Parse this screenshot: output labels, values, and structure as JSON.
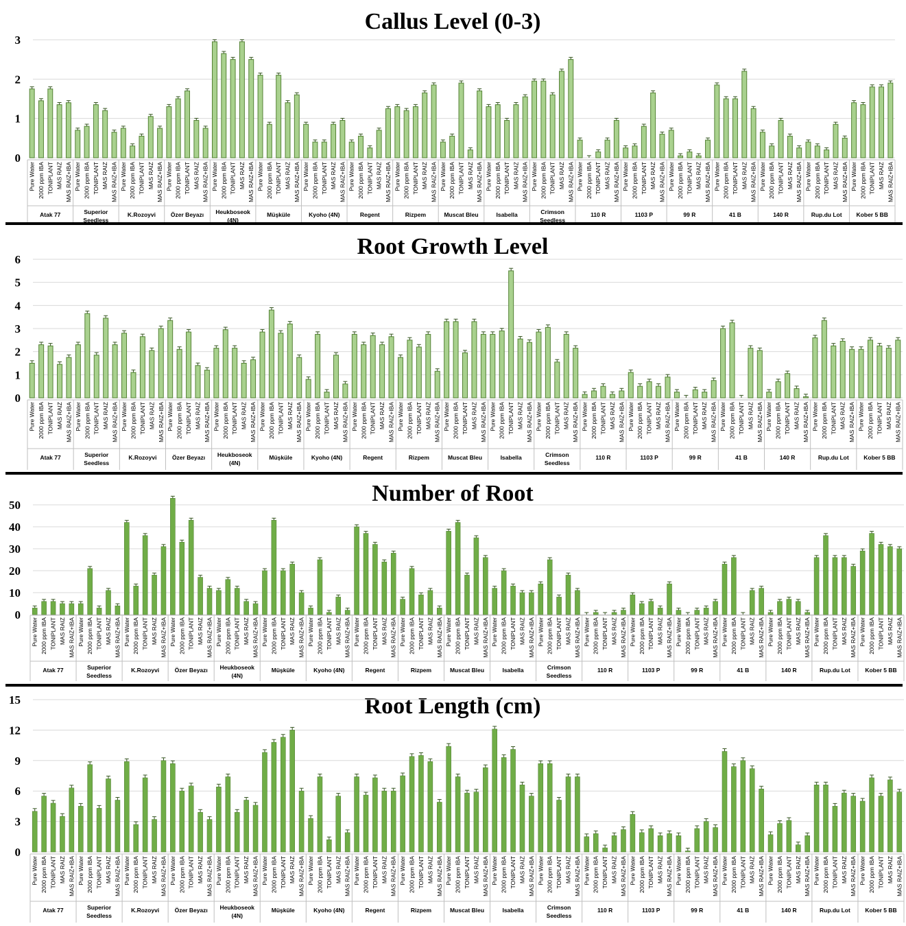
{
  "figure": {
    "background": "#ffffff"
  },
  "treatments": [
    "Pure Water",
    "2000 ppm IBA",
    "TONIPLANT",
    "MAS RAIZ",
    "MAS RAIZ+IBA"
  ],
  "groups": [
    "Atak 77",
    "Superior Seedless",
    "K.Rozoyvi",
    "Özer Beyazı",
    "Heukboseok (4N)",
    "Müşküle",
    "Kyoho (4N)",
    "Regent",
    "Rizpem",
    "Muscat Bleu",
    "Isabella",
    "Crimson Seedless",
    "110 R",
    "1103 P",
    "99 R",
    "41 B",
    "140 R",
    "Rup.du Lot",
    "Kober 5 BB"
  ],
  "colors": {
    "bar_light": "#a9d18e",
    "bar_dark": "#70ad47",
    "bar_edge": "#548235",
    "error": "#385723"
  },
  "chart_data": [
    {
      "type": "bar",
      "title": "Callus Level (0-3)",
      "ylim": [
        0,
        3
      ],
      "yticks": [
        0,
        1,
        2,
        3
      ],
      "group_labels": [
        [
          "Atak 77"
        ],
        [
          "Superior",
          "Seedless"
        ],
        [
          "K.Rozoyvi"
        ],
        [
          "Özer Beyazı"
        ],
        [
          "Heukboseok",
          "(4N)"
        ],
        [
          "Müşküle"
        ],
        [
          "Kyoho (4N)"
        ],
        [
          "Regent"
        ],
        [
          "Rizpem"
        ],
        [
          "Muscat Bleu"
        ],
        [
          "Isabella"
        ],
        [
          "Crimson",
          "Seedless"
        ],
        [
          "110 R"
        ],
        [
          "1103 P"
        ],
        [
          "99 R"
        ],
        [
          "41 B"
        ],
        [
          "140 R"
        ],
        [
          "Rup.du Lot"
        ],
        [
          "Kober 5 BB"
        ]
      ],
      "values": [
        [
          1.75,
          1.45,
          1.75,
          1.35,
          1.4
        ],
        [
          0.7,
          0.8,
          1.35,
          1.2,
          0.65
        ],
        [
          0.75,
          0.3,
          0.55,
          1.05,
          0.75
        ],
        [
          1.3,
          1.5,
          1.7,
          0.95,
          0.75
        ],
        [
          2.95,
          2.65,
          2.5,
          2.95,
          2.5
        ],
        [
          2.1,
          0.85,
          2.1,
          1.4,
          1.6
        ],
        [
          0.85,
          0.4,
          0.4,
          0.85,
          0.95
        ],
        [
          0.4,
          0.55,
          0.25,
          0.7,
          1.25
        ],
        [
          1.3,
          1.2,
          1.3,
          1.65,
          1.85
        ],
        [
          0.4,
          0.55,
          1.9,
          0.2,
          1.7
        ],
        [
          1.3,
          1.35,
          0.95,
          1.35,
          1.55
        ],
        [
          1.95,
          1.95,
          1.6,
          2.2,
          2.5
        ],
        [
          0.45,
          0.0,
          0.15,
          0.45,
          0.95
        ],
        [
          0.25,
          0.3,
          0.8,
          1.65,
          0.6
        ],
        [
          0.7,
          0.05,
          0.15,
          0.05,
          0.45
        ],
        [
          1.85,
          1.5,
          1.5,
          2.2,
          1.25
        ],
        [
          0.65,
          0.3,
          0.95,
          0.55,
          0.25
        ],
        [
          0.4,
          0.3,
          0.2,
          0.85,
          0.5
        ],
        [
          1.4,
          1.35,
          1.8,
          1.8,
          1.9
        ]
      ]
    },
    {
      "type": "bar",
      "title": "Root Growth Level",
      "ylim": [
        0,
        6
      ],
      "yticks": [
        0,
        1,
        2,
        3,
        4,
        5,
        6
      ],
      "group_labels": [
        [
          "Atak 77"
        ],
        [
          "Superior",
          "Seedless"
        ],
        [
          "K.Rozoyvi"
        ],
        [
          "Özer Beyazı"
        ],
        [
          "Heukboseok",
          "(4N)"
        ],
        [
          "Müşküle"
        ],
        [
          "Kyoho (4N)"
        ],
        [
          "Regent"
        ],
        [
          "Rizpem"
        ],
        [
          "Muscat Bleu"
        ],
        [
          "Isabella"
        ],
        [
          "Crimson",
          "Seedless"
        ],
        [
          "110 R"
        ],
        [
          "1103 P"
        ],
        [
          "99 R"
        ],
        [
          "41 B"
        ],
        [
          "140 R"
        ],
        [
          "Rup.du Lot"
        ],
        [
          "Kober 5 BB"
        ]
      ],
      "values": [
        [
          1.5,
          2.3,
          2.25,
          1.45,
          1.75
        ],
        [
          2.3,
          3.65,
          1.85,
          3.45,
          2.3
        ],
        [
          2.8,
          1.1,
          2.65,
          2.05,
          3.0
        ],
        [
          3.35,
          2.1,
          2.85,
          1.4,
          1.2
        ],
        [
          2.15,
          2.95,
          2.15,
          1.5,
          1.65
        ],
        [
          2.85,
          3.8,
          2.8,
          3.2,
          1.75
        ],
        [
          0.8,
          2.75,
          0.25,
          1.85,
          0.6
        ],
        [
          2.75,
          2.3,
          2.7,
          2.3,
          2.65
        ],
        [
          1.75,
          2.5,
          2.2,
          2.75,
          1.15
        ],
        [
          3.3,
          3.3,
          1.95,
          3.3,
          2.75
        ],
        [
          2.75,
          2.9,
          5.5,
          2.55,
          2.4
        ],
        [
          2.85,
          3.05,
          1.55,
          2.75,
          2.15
        ],
        [
          0.15,
          0.3,
          0.5,
          0.15,
          0.3
        ],
        [
          1.1,
          0.5,
          0.7,
          0.5,
          0.9
        ],
        [
          0.25,
          0.0,
          0.35,
          0.25,
          0.75
        ],
        [
          3.0,
          3.25,
          0.0,
          2.15,
          2.05
        ],
        [
          0.25,
          0.7,
          1.05,
          0.4,
          0.05
        ],
        [
          2.6,
          3.35,
          2.25,
          2.45,
          2.1
        ],
        [
          2.1,
          2.5,
          2.25,
          2.15,
          2.5
        ]
      ]
    },
    {
      "type": "bar",
      "title": "Number of Root",
      "ylim": [
        0,
        50
      ],
      "yticks": [
        0,
        10,
        20,
        30,
        40,
        50
      ],
      "group_labels": [
        [
          "Atak 77"
        ],
        [
          "Superior",
          "Seedless"
        ],
        [
          "K.Rozoyvi"
        ],
        [
          "Özer Beyazı"
        ],
        [
          "Heukboseok",
          "(4N)"
        ],
        [
          "Müşküle"
        ],
        [
          "Kyoho (4N)"
        ],
        [
          "Regent"
        ],
        [
          "Rizpem"
        ],
        [
          "Muscat Bleu"
        ],
        [
          "Isabella"
        ],
        [
          "Crimson",
          "Seedless"
        ],
        [
          "110 R"
        ],
        [
          "1103 P"
        ],
        [
          "99 R"
        ],
        [
          "41 B"
        ],
        [
          "140 R"
        ],
        [
          "Rup.du Lot"
        ],
        [
          "Kober 5 BB"
        ]
      ],
      "values": [
        [
          3,
          6,
          6,
          5,
          5
        ],
        [
          5,
          21,
          3,
          11,
          4
        ],
        [
          42,
          13,
          36,
          18,
          31
        ],
        [
          53,
          33,
          43,
          17,
          12
        ],
        [
          11,
          16,
          12,
          6,
          5
        ],
        [
          20,
          43,
          20,
          23,
          10
        ],
        [
          3,
          25,
          1,
          8,
          2
        ],
        [
          40,
          37,
          32,
          24,
          28
        ],
        [
          7,
          21,
          9,
          11,
          3
        ],
        [
          38,
          42,
          18,
          35,
          26
        ],
        [
          12,
          20,
          13,
          10,
          10
        ],
        [
          14,
          25,
          8,
          18,
          11
        ],
        [
          0,
          1,
          0,
          1,
          2
        ],
        [
          9,
          5,
          6,
          3,
          14
        ],
        [
          2,
          0,
          2,
          3,
          6
        ],
        [
          23,
          26,
          0,
          11,
          12
        ],
        [
          1,
          6,
          7,
          6,
          1
        ],
        [
          26,
          36,
          26,
          26,
          22
        ],
        [
          29,
          37,
          32,
          31,
          30
        ]
      ]
    },
    {
      "type": "bar",
      "title": "Root Length (cm)",
      "ylim": [
        0,
        15
      ],
      "yticks": [
        0,
        3,
        6,
        9,
        12,
        15
      ],
      "group_labels": [
        [
          "Atak 77"
        ],
        [
          "Superior",
          "Seedless"
        ],
        [
          "K.Rozoyvi"
        ],
        [
          "Özer Beyazı"
        ],
        [
          "Heukboseok",
          "(4N)"
        ],
        [
          "Müşküle"
        ],
        [
          "Kyoho (4N)"
        ],
        [
          "Regent"
        ],
        [
          "Rizpem"
        ],
        [
          "Muscat Bleu"
        ],
        [
          "Isabella"
        ],
        [
          "Crimson",
          "Seedless"
        ],
        [
          "110 R"
        ],
        [
          "1103 P"
        ],
        [
          "99 R"
        ],
        [
          "41 B"
        ],
        [
          "140 R"
        ],
        [
          "Rup.du Lot"
        ],
        [
          "Kober 5 BB"
        ]
      ],
      "values": [
        [
          4.0,
          5.5,
          4.8,
          3.5,
          6.3
        ],
        [
          4.5,
          8.6,
          4.3,
          7.2,
          5.1
        ],
        [
          8.9,
          2.7,
          7.3,
          3.2,
          9.0
        ],
        [
          8.7,
          6.0,
          6.5,
          3.9,
          3.2
        ],
        [
          6.4,
          7.4,
          3.9,
          5.1,
          4.6
        ],
        [
          9.8,
          10.8,
          11.3,
          12.0,
          6.0
        ],
        [
          3.3,
          7.4,
          1.2,
          5.5,
          1.9
        ],
        [
          7.4,
          5.6,
          7.3,
          6.0,
          6.0
        ],
        [
          7.5,
          9.4,
          9.5,
          8.9,
          4.9
        ],
        [
          10.4,
          7.4,
          5.8,
          5.9,
          8.3
        ],
        [
          12.1,
          9.3,
          10.1,
          6.6,
          5.5
        ],
        [
          8.7,
          8.7,
          5.1,
          7.4,
          7.4
        ],
        [
          1.5,
          1.8,
          0.4,
          1.6,
          2.2
        ],
        [
          3.7,
          1.9,
          2.3,
          1.6,
          1.8
        ],
        [
          1.6,
          0.1,
          2.3,
          3.0,
          2.4
        ],
        [
          9.9,
          8.4,
          9.0,
          8.2,
          6.2
        ],
        [
          1.7,
          2.8,
          3.1,
          0.7,
          1.6
        ],
        [
          6.6,
          6.6,
          4.5,
          5.8,
          5.5
        ],
        [
          5.0,
          7.3,
          5.5,
          7.1,
          5.9
        ]
      ]
    }
  ]
}
